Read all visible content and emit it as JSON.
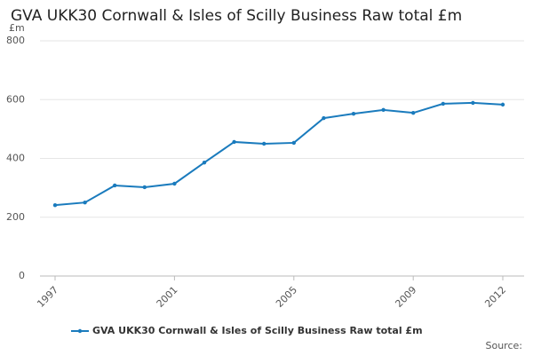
{
  "chart_data": {
    "type": "line",
    "title": "GVA UKK30 Cornwall & Isles of Scilly Business Raw total £m",
    "y_axis_label": "£m",
    "source": "Source:",
    "x": [
      1997,
      1998,
      1999,
      2000,
      2001,
      2002,
      2003,
      2004,
      2005,
      2006,
      2007,
      2008,
      2009,
      2010,
      2011,
      2012
    ],
    "series": [
      {
        "name": "GVA UKK30 Cornwall & Isles of Scilly Business Raw total £m",
        "color": "#1a7bbd",
        "values": [
          241,
          250,
          308,
          302,
          314,
          386,
          456,
          450,
          453,
          537,
          552,
          565,
          555,
          586,
          589,
          583
        ]
      }
    ],
    "xlim": [
      1997,
      2012
    ],
    "xticks": [
      1997,
      2001,
      2005,
      2009,
      2012
    ],
    "ylim": [
      0,
      800
    ],
    "yticks": [
      0,
      200,
      400,
      600,
      800
    ],
    "grid": true
  }
}
